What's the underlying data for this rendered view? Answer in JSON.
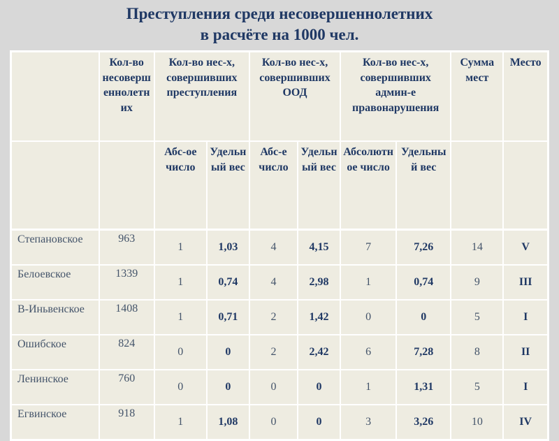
{
  "title": {
    "line1": "Преступления среди несовершеннолетних",
    "line2": "в расчёте на 1000 чел."
  },
  "table": {
    "group_headers": {
      "region": "",
      "minors_total": "Кол-во несовершеннолетних",
      "crimes": "Кол-во нес-х, совершивших преступления",
      "ood": "Кол-во нес-х, совершивших ООД",
      "admin": "Кол-во нес-х, совершивших админ-е правонарушения",
      "sum": "Сумма мест",
      "place": "Место"
    },
    "sub_headers": {
      "crime_abs": "Абс-ое число",
      "crime_share": "Удельный вес",
      "ood_abs": "Абс-е число",
      "ood_share": "Удельный вес",
      "admin_abs": "Абсолютное число",
      "admin_share": "Удельный вес"
    },
    "rows": [
      {
        "region": "Степановское",
        "population": "963",
        "crime_abs": "1",
        "crime_share": "1,03",
        "ood_abs": "4",
        "ood_share": "4,15",
        "admin_abs": "7",
        "admin_share": "7,26",
        "sum": "14",
        "place": "V"
      },
      {
        "region": "Белоевское",
        "population": "1339",
        "crime_abs": "1",
        "crime_share": "0,74",
        "ood_abs": "4",
        "ood_share": "2,98",
        "admin_abs": "1",
        "admin_share": "0,74",
        "sum": "9",
        "place": "III"
      },
      {
        "region": "В-Иньвенское",
        "population": "1408",
        "crime_abs": "1",
        "crime_share": "0,71",
        "ood_abs": "2",
        "ood_share": "1,42",
        "admin_abs": "0",
        "admin_share": "0",
        "sum": "5",
        "place": "I"
      },
      {
        "region": "Ошибское",
        "population": "824",
        "crime_abs": "0",
        "crime_share": "0",
        "ood_abs": "2",
        "ood_share": "2,42",
        "admin_abs": "6",
        "admin_share": "7,28",
        "sum": "8",
        "place": "II"
      },
      {
        "region": "Ленинское",
        "population": "760",
        "crime_abs": "0",
        "crime_share": "0",
        "ood_abs": "0",
        "ood_share": "0",
        "admin_abs": "1",
        "admin_share": "1,31",
        "sum": "5",
        "place": "I"
      },
      {
        "region": "Егвинское",
        "population": "918",
        "crime_abs": "1",
        "crime_share": "1,08",
        "ood_abs": "0",
        "ood_share": "0",
        "admin_abs": "3",
        "admin_share": "3,26",
        "sum": "10",
        "place": "IV"
      }
    ]
  },
  "colors": {
    "slide_background": "#d8d8d8",
    "cell_background": "#eeece1",
    "grid_border": "#ffffff",
    "text_dark_navy": "#1f3864",
    "text_muted_slate": "#44546a"
  }
}
